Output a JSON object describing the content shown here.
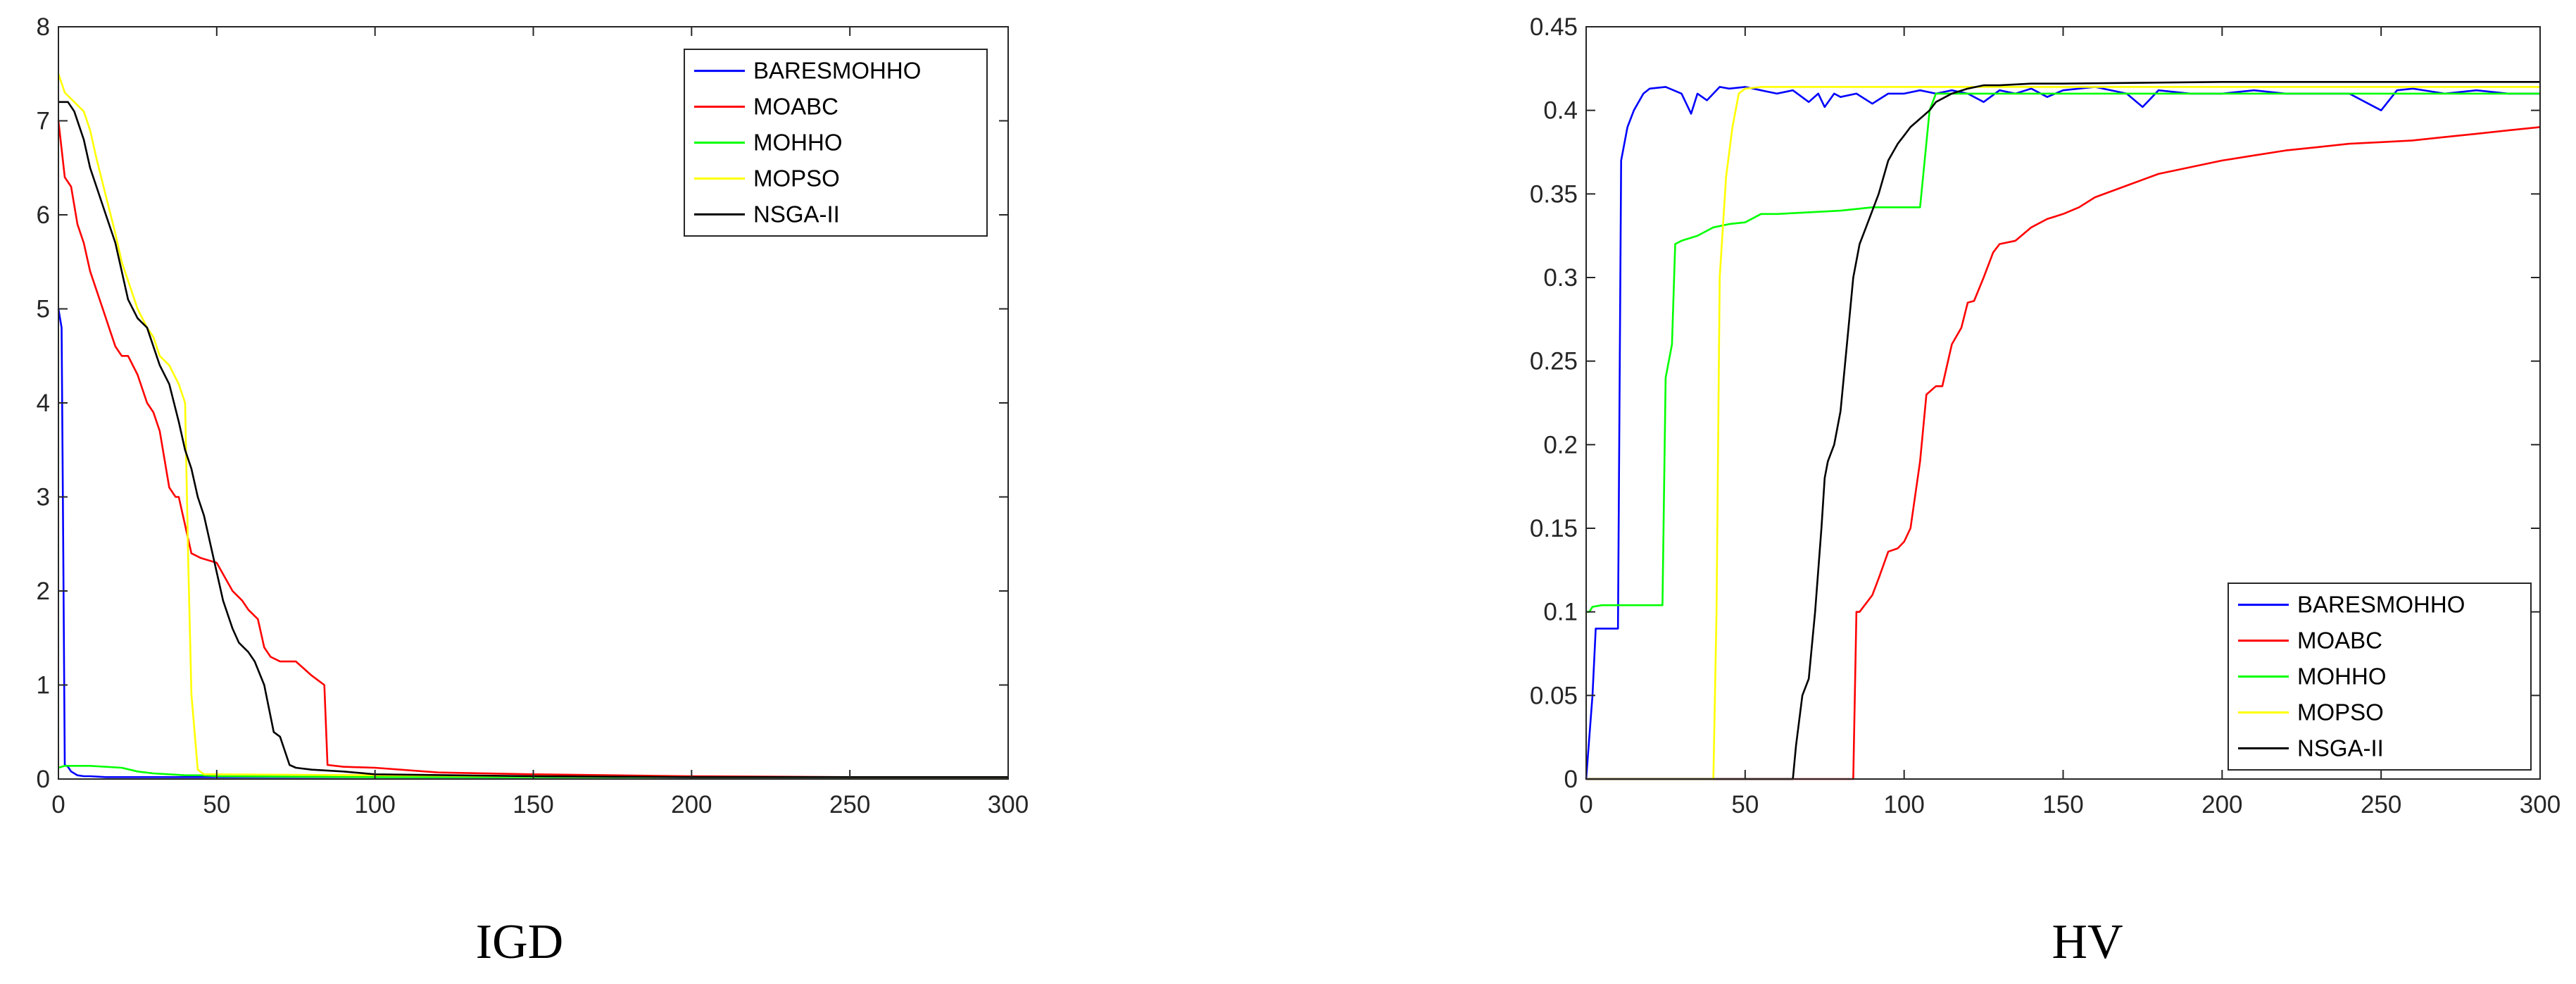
{
  "chart_data": [
    {
      "type": "line",
      "caption": "IGD",
      "xlim": [
        0,
        300
      ],
      "ylim": [
        0,
        8
      ],
      "x_ticks": [
        "0",
        "50",
        "100",
        "150",
        "200",
        "250",
        "300"
      ],
      "y_ticks": [
        "0",
        "1",
        "2",
        "3",
        "4",
        "5",
        "6",
        "7",
        "8"
      ],
      "grid": false,
      "legend_position": "top-right",
      "series": [
        {
          "name": "BARESMOHHO",
          "color": "#0000ff",
          "x": [
            0,
            1,
            1.5,
            2,
            3,
            4,
            6,
            8,
            10,
            15,
            30,
            50,
            100,
            150,
            200,
            250,
            300
          ],
          "y": [
            5.0,
            4.8,
            2.6,
            0.15,
            0.13,
            0.08,
            0.04,
            0.03,
            0.03,
            0.02,
            0.02,
            0.02,
            0.02,
            0.02,
            0.02,
            0.02,
            0.02
          ]
        },
        {
          "name": "MOABC",
          "color": "#ff0000",
          "x": [
            0,
            2,
            4,
            6,
            8,
            10,
            12,
            14,
            16,
            18,
            20,
            22,
            25,
            28,
            30,
            32,
            35,
            37,
            38,
            40,
            42,
            45,
            50,
            55,
            58,
            60,
            63,
            65,
            67,
            70,
            75,
            80,
            82,
            84,
            85,
            90,
            100,
            120,
            150,
            200,
            250,
            300
          ],
          "y": [
            7.0,
            6.4,
            6.3,
            5.9,
            5.7,
            5.4,
            5.2,
            5.0,
            4.8,
            4.6,
            4.5,
            4.5,
            4.3,
            4.0,
            3.9,
            3.7,
            3.1,
            3.0,
            3.0,
            2.7,
            2.4,
            2.35,
            2.3,
            2.0,
            1.9,
            1.8,
            1.7,
            1.4,
            1.3,
            1.25,
            1.25,
            1.1,
            1.05,
            1.0,
            0.15,
            0.13,
            0.12,
            0.07,
            0.05,
            0.03,
            0.02,
            0.02
          ]
        },
        {
          "name": "MOHHO",
          "color": "#00ff00",
          "x": [
            0,
            2,
            10,
            20,
            25,
            30,
            35,
            40,
            45,
            50,
            100,
            150,
            200,
            250,
            300
          ],
          "y": [
            0.12,
            0.14,
            0.14,
            0.12,
            0.08,
            0.06,
            0.05,
            0.04,
            0.04,
            0.03,
            0.02,
            0.02,
            0.02,
            0.02,
            0.02
          ]
        },
        {
          "name": "MOPSO",
          "color": "#ffff00",
          "x": [
            0,
            2,
            5,
            8,
            10,
            12,
            15,
            18,
            20,
            22,
            25,
            28,
            30,
            32,
            35,
            38,
            40,
            41,
            42,
            44,
            46,
            50,
            100,
            150,
            200,
            250,
            300
          ],
          "y": [
            7.5,
            7.3,
            7.2,
            7.1,
            6.9,
            6.6,
            6.2,
            5.8,
            5.5,
            5.3,
            5.0,
            4.8,
            4.7,
            4.5,
            4.4,
            4.2,
            4.0,
            2.3,
            0.9,
            0.1,
            0.05,
            0.05,
            0.04,
            0.03,
            0.02,
            0.02,
            0.02
          ]
        },
        {
          "name": "NSGA-II",
          "color": "#000000",
          "x": [
            0,
            3,
            5,
            8,
            10,
            12,
            15,
            18,
            20,
            22,
            25,
            28,
            30,
            32,
            35,
            38,
            40,
            42,
            44,
            46,
            48,
            50,
            52,
            55,
            57,
            60,
            62,
            65,
            68,
            70,
            73,
            75,
            80,
            90,
            100,
            150,
            200,
            250,
            300
          ],
          "y": [
            7.2,
            7.2,
            7.1,
            6.8,
            6.5,
            6.3,
            6.0,
            5.7,
            5.4,
            5.1,
            4.9,
            4.8,
            4.6,
            4.4,
            4.2,
            3.8,
            3.5,
            3.3,
            3.0,
            2.8,
            2.5,
            2.2,
            1.9,
            1.6,
            1.45,
            1.35,
            1.25,
            1.0,
            0.5,
            0.45,
            0.15,
            0.12,
            0.1,
            0.08,
            0.05,
            0.03,
            0.02,
            0.02,
            0.02
          ]
        }
      ]
    },
    {
      "type": "line",
      "caption": "HV",
      "xlim": [
        0,
        300
      ],
      "ylim": [
        0,
        0.45
      ],
      "x_ticks": [
        "0",
        "50",
        "100",
        "150",
        "200",
        "250",
        "300"
      ],
      "y_ticks": [
        "0",
        "0.05",
        "0.1",
        "0.15",
        "0.2",
        "0.25",
        "0.3",
        "0.35",
        "0.4",
        "0.45"
      ],
      "grid": false,
      "legend_position": "bottom-right",
      "series": [
        {
          "name": "BARESMOHHO",
          "color": "#0000ff",
          "x": [
            0,
            2,
            3,
            4,
            10,
            11,
            13,
            15,
            18,
            20,
            25,
            30,
            33,
            35,
            38,
            42,
            45,
            50,
            55,
            60,
            65,
            70,
            73,
            75,
            78,
            80,
            85,
            90,
            95,
            100,
            105,
            110,
            115,
            120,
            125,
            130,
            135,
            140,
            145,
            150,
            160,
            170,
            175,
            180,
            190,
            200,
            210,
            220,
            230,
            240,
            245,
            250,
            255,
            260,
            270,
            280,
            290,
            300
          ],
          "y": [
            0,
            0.05,
            0.09,
            0.09,
            0.09,
            0.37,
            0.39,
            0.4,
            0.41,
            0.413,
            0.414,
            0.41,
            0.398,
            0.41,
            0.406,
            0.414,
            0.413,
            0.414,
            0.412,
            0.41,
            0.412,
            0.405,
            0.41,
            0.402,
            0.41,
            0.408,
            0.41,
            0.404,
            0.41,
            0.41,
            0.412,
            0.41,
            0.412,
            0.41,
            0.405,
            0.412,
            0.41,
            0.413,
            0.408,
            0.412,
            0.414,
            0.41,
            0.402,
            0.412,
            0.41,
            0.41,
            0.412,
            0.41,
            0.41,
            0.41,
            0.405,
            0.4,
            0.412,
            0.413,
            0.41,
            0.412,
            0.41,
            0.41
          ]
        },
        {
          "name": "MOABC",
          "color": "#ff0000",
          "x": [
            0,
            84,
            85,
            86,
            90,
            92,
            95,
            98,
            100,
            102,
            105,
            107,
            110,
            112,
            115,
            118,
            120,
            122,
            125,
            128,
            130,
            135,
            140,
            145,
            150,
            155,
            160,
            170,
            180,
            190,
            200,
            210,
            220,
            230,
            240,
            250,
            260,
            270,
            280,
            290,
            300
          ],
          "y": [
            0,
            0,
            0.1,
            0.1,
            0.11,
            0.12,
            0.136,
            0.138,
            0.142,
            0.15,
            0.19,
            0.23,
            0.235,
            0.235,
            0.26,
            0.27,
            0.285,
            0.286,
            0.3,
            0.315,
            0.32,
            0.322,
            0.33,
            0.335,
            0.338,
            0.342,
            0.348,
            0.355,
            0.362,
            0.366,
            0.37,
            0.373,
            0.376,
            0.378,
            0.38,
            0.381,
            0.382,
            0.384,
            0.386,
            0.388,
            0.39
          ]
        },
        {
          "name": "MOHHO",
          "color": "#00ff00",
          "x": [
            0,
            1,
            2,
            5,
            10,
            15,
            20,
            24,
            25,
            27,
            28,
            30,
            35,
            40,
            45,
            50,
            55,
            60,
            70,
            80,
            90,
            100,
            105,
            108,
            110,
            115,
            120,
            150,
            200,
            250,
            300
          ],
          "y": [
            0.1,
            0.1,
            0.103,
            0.104,
            0.104,
            0.104,
            0.104,
            0.104,
            0.24,
            0.26,
            0.32,
            0.322,
            0.325,
            0.33,
            0.332,
            0.333,
            0.338,
            0.338,
            0.339,
            0.34,
            0.342,
            0.342,
            0.342,
            0.4,
            0.41,
            0.41,
            0.41,
            0.41,
            0.41,
            0.41,
            0.41
          ]
        },
        {
          "name": "MOPSO",
          "color": "#ffff00",
          "x": [
            0,
            40,
            41,
            42,
            44,
            46,
            48,
            50,
            55,
            60,
            100,
            150,
            200,
            250,
            300
          ],
          "y": [
            0,
            0,
            0.1,
            0.3,
            0.36,
            0.39,
            0.41,
            0.413,
            0.414,
            0.414,
            0.414,
            0.414,
            0.414,
            0.414,
            0.414
          ]
        },
        {
          "name": "NSGA-II",
          "color": "#000000",
          "x": [
            0,
            65,
            66,
            68,
            70,
            72,
            74,
            75,
            76,
            78,
            80,
            82,
            84,
            86,
            88,
            90,
            92,
            95,
            98,
            100,
            102,
            105,
            108,
            110,
            115,
            120,
            125,
            130,
            140,
            150,
            200,
            250,
            300
          ],
          "y": [
            0,
            0,
            0.02,
            0.05,
            0.06,
            0.1,
            0.15,
            0.18,
            0.19,
            0.2,
            0.22,
            0.26,
            0.3,
            0.32,
            0.33,
            0.34,
            0.35,
            0.37,
            0.38,
            0.385,
            0.39,
            0.395,
            0.4,
            0.405,
            0.41,
            0.413,
            0.415,
            0.415,
            0.416,
            0.416,
            0.417,
            0.417,
            0.417
          ]
        }
      ]
    }
  ]
}
